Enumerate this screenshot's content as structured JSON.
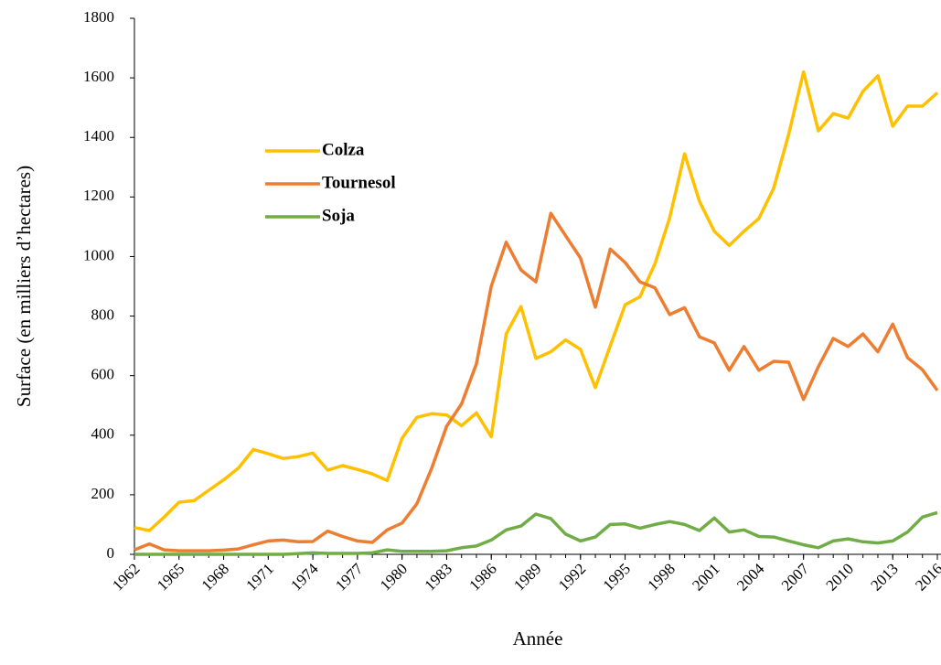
{
  "chart_data": {
    "type": "line",
    "x_label": "Année",
    "y_label": "Surface (en milliers d’hectares)",
    "x": [
      1962,
      1963,
      1964,
      1965,
      1966,
      1967,
      1968,
      1969,
      1970,
      1971,
      1972,
      1973,
      1974,
      1975,
      1976,
      1977,
      1978,
      1979,
      1980,
      1981,
      1982,
      1983,
      1984,
      1985,
      1986,
      1987,
      1988,
      1989,
      1990,
      1991,
      1992,
      1993,
      1994,
      1995,
      1996,
      1997,
      1998,
      1999,
      2000,
      2001,
      2002,
      2003,
      2004,
      2005,
      2006,
      2007,
      2008,
      2009,
      2010,
      2011,
      2012,
      2013,
      2014,
      2015,
      2016
    ],
    "series": [
      {
        "name": "Colza",
        "color": "#ffc000",
        "values": [
          90,
          80,
          125,
          175,
          180,
          215,
          250,
          290,
          352,
          338,
          322,
          328,
          340,
          283,
          298,
          285,
          270,
          248,
          390,
          460,
          472,
          468,
          432,
          475,
          395,
          740,
          832,
          658,
          680,
          720,
          688,
          560,
          700,
          838,
          865,
          975,
          1130,
          1345,
          1185,
          1085,
          1037,
          1085,
          1128,
          1230,
          1410,
          1620,
          1422,
          1480,
          1465,
          1555,
          1607,
          1438,
          1505,
          1505,
          1550
        ]
      },
      {
        "name": "Tournesol",
        "color": "#ed7d31",
        "values": [
          15,
          35,
          15,
          12,
          12,
          12,
          14,
          18,
          32,
          45,
          48,
          42,
          43,
          78,
          60,
          45,
          40,
          82,
          105,
          170,
          290,
          430,
          505,
          640,
          900,
          1048,
          955,
          915,
          1145,
          1070,
          995,
          830,
          1025,
          980,
          915,
          895,
          805,
          828,
          730,
          710,
          618,
          698,
          618,
          648,
          645,
          520,
          630,
          725,
          698,
          740,
          680,
          773,
          660,
          620,
          550
        ]
      },
      {
        "name": "Soja",
        "color": "#70ad47",
        "values": [
          0,
          0,
          0,
          0,
          0,
          0,
          0,
          0,
          0,
          0,
          0,
          2,
          5,
          3,
          3,
          3,
          5,
          15,
          10,
          10,
          10,
          12,
          22,
          28,
          48,
          82,
          95,
          135,
          120,
          68,
          45,
          58,
          100,
          102,
          88,
          100,
          110,
          100,
          80,
          122,
          75,
          82,
          60,
          58,
          45,
          32,
          22,
          45,
          52,
          42,
          38,
          45,
          75,
          125,
          140
        ]
      }
    ],
    "xlim": [
      1962,
      2016
    ],
    "xticks": [
      1962,
      1965,
      1968,
      1971,
      1974,
      1977,
      1980,
      1983,
      1986,
      1989,
      1992,
      1995,
      1998,
      2001,
      2004,
      2007,
      2010,
      2013,
      2016
    ],
    "ylim": [
      0,
      1800
    ],
    "yticks": [
      0,
      200,
      400,
      600,
      800,
      1000,
      1200,
      1400,
      1600,
      1800
    ],
    "grid": false,
    "legend": "upper left"
  }
}
